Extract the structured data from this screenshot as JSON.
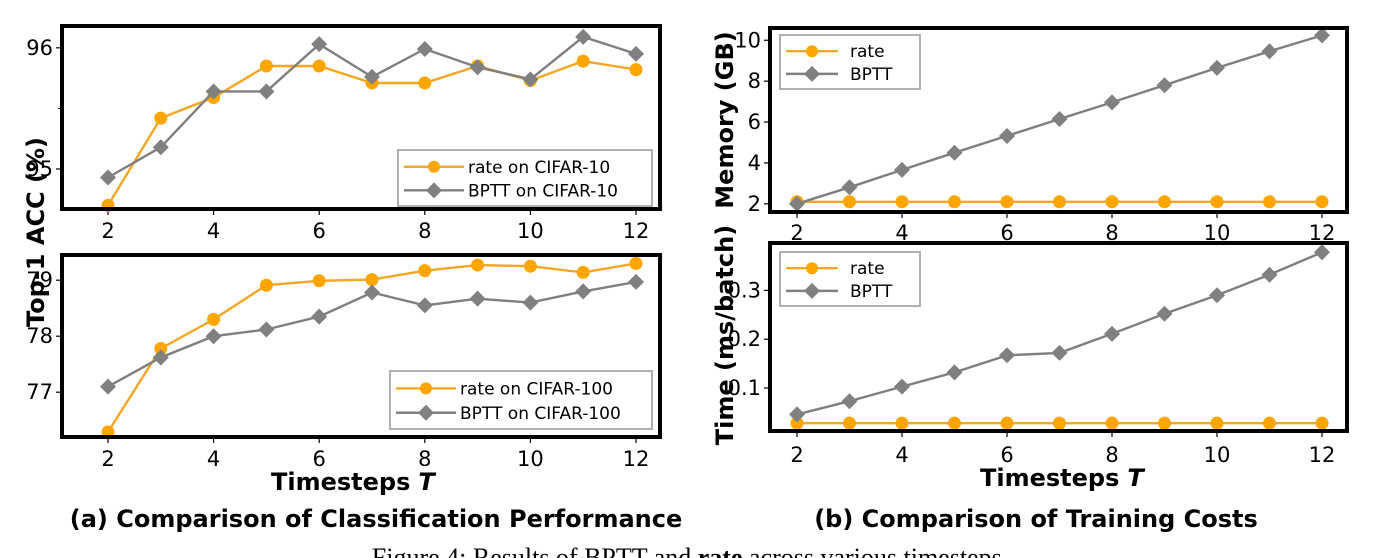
{
  "figure_caption": {
    "prefix": "Figure 4: Results of BPTT and ",
    "bold": "rate",
    "suffix": "   across various timesteps."
  },
  "colors": {
    "rate": "#FFA500",
    "bptt": "#808080",
    "rate_line": "#F5A623",
    "bptt_line": "#7F7F7F"
  },
  "subcaptions": {
    "a": "(a) Comparison of Classification Performance",
    "b": "(b) Comparison of Training Costs"
  },
  "shared_labels": {
    "left_ylabel": "Top-1 ACC (%)",
    "xlabel_left": "Timesteps",
    "xlabel_right": "Timesteps",
    "xlabel_var": "T"
  },
  "chart_data": [
    {
      "id": "cifar10",
      "type": "line",
      "title": "",
      "xlabel": "",
      "ylabel": "Top-1 ACC (%)",
      "x": [
        2,
        3,
        4,
        5,
        6,
        7,
        8,
        9,
        10,
        11,
        12
      ],
      "xticks": [
        "2",
        "4",
        "6",
        "8",
        "10",
        "12"
      ],
      "yticks": [
        "95",
        "96"
      ],
      "ylim": [
        94.67,
        96.18
      ],
      "legend_position": "lower-right",
      "series": [
        {
          "name": "rate on CIFAR-10",
          "marker": "circle",
          "values": [
            94.7,
            95.42,
            95.59,
            95.85,
            95.85,
            95.71,
            95.71,
            95.85,
            95.73,
            95.89,
            95.82
          ]
        },
        {
          "name": "BPTT on CIFAR-10",
          "marker": "diamond",
          "values": [
            94.93,
            95.18,
            95.64,
            95.64,
            96.03,
            95.76,
            95.99,
            95.84,
            95.74,
            96.09,
            95.95
          ]
        }
      ]
    },
    {
      "id": "cifar100",
      "type": "line",
      "title": "",
      "xlabel": "Timesteps T",
      "ylabel": "Top-1 ACC (%)",
      "x": [
        2,
        3,
        4,
        5,
        6,
        7,
        8,
        9,
        10,
        11,
        12
      ],
      "xticks": [
        "2",
        "4",
        "6",
        "8",
        "10",
        "12"
      ],
      "yticks": [
        "77",
        "78",
        "79"
      ],
      "ylim": [
        76.2,
        79.45
      ],
      "legend_position": "lower-right",
      "series": [
        {
          "name": "rate on CIFAR-100",
          "marker": "circle",
          "values": [
            76.29,
            77.78,
            78.3,
            78.91,
            78.99,
            79.01,
            79.17,
            79.27,
            79.25,
            79.14,
            79.3
          ]
        },
        {
          "name": "BPTT on CIFAR-100",
          "marker": "diamond",
          "values": [
            77.1,
            77.62,
            78.0,
            78.12,
            78.35,
            78.78,
            78.55,
            78.67,
            78.6,
            78.8,
            78.97
          ]
        }
      ]
    },
    {
      "id": "memory",
      "type": "line",
      "title": "",
      "xlabel": "",
      "ylabel": "Memory (GB)",
      "x": [
        2,
        3,
        4,
        5,
        6,
        7,
        8,
        9,
        10,
        11,
        12
      ],
      "xticks": [
        "2",
        "4",
        "6",
        "8",
        "10",
        "12"
      ],
      "yticks": [
        "2",
        "4",
        "6",
        "8",
        "10"
      ],
      "ylim": [
        1.6,
        10.6
      ],
      "legend_position": "upper-left",
      "series": [
        {
          "name": "rate",
          "marker": "circle",
          "values": [
            2.1,
            2.1,
            2.1,
            2.1,
            2.1,
            2.1,
            2.1,
            2.1,
            2.1,
            2.1,
            2.1
          ]
        },
        {
          "name": "BPTT",
          "marker": "diamond",
          "values": [
            2.0,
            2.81,
            3.66,
            4.5,
            5.32,
            6.15,
            6.96,
            7.8,
            8.65,
            9.46,
            10.24
          ]
        }
      ]
    },
    {
      "id": "time",
      "type": "line",
      "title": "",
      "xlabel": "Timesteps T",
      "ylabel": "Time (ms/batch)",
      "x": [
        2,
        3,
        4,
        5,
        6,
        7,
        8,
        9,
        10,
        11,
        12
      ],
      "xticks": [
        "2",
        "4",
        "6",
        "8",
        "10",
        "12"
      ],
      "yticks": [
        "0.1",
        "0.2",
        "0.3"
      ],
      "ylim": [
        0.012,
        0.397
      ],
      "legend_position": "upper-left",
      "series": [
        {
          "name": "rate",
          "marker": "circle",
          "values": [
            0.028,
            0.028,
            0.028,
            0.028,
            0.028,
            0.028,
            0.028,
            0.028,
            0.028,
            0.028,
            0.028
          ]
        },
        {
          "name": "BPTT",
          "marker": "diamond",
          "values": [
            0.046,
            0.073,
            0.103,
            0.132,
            0.167,
            0.172,
            0.211,
            0.252,
            0.29,
            0.332,
            0.378
          ]
        }
      ]
    }
  ]
}
